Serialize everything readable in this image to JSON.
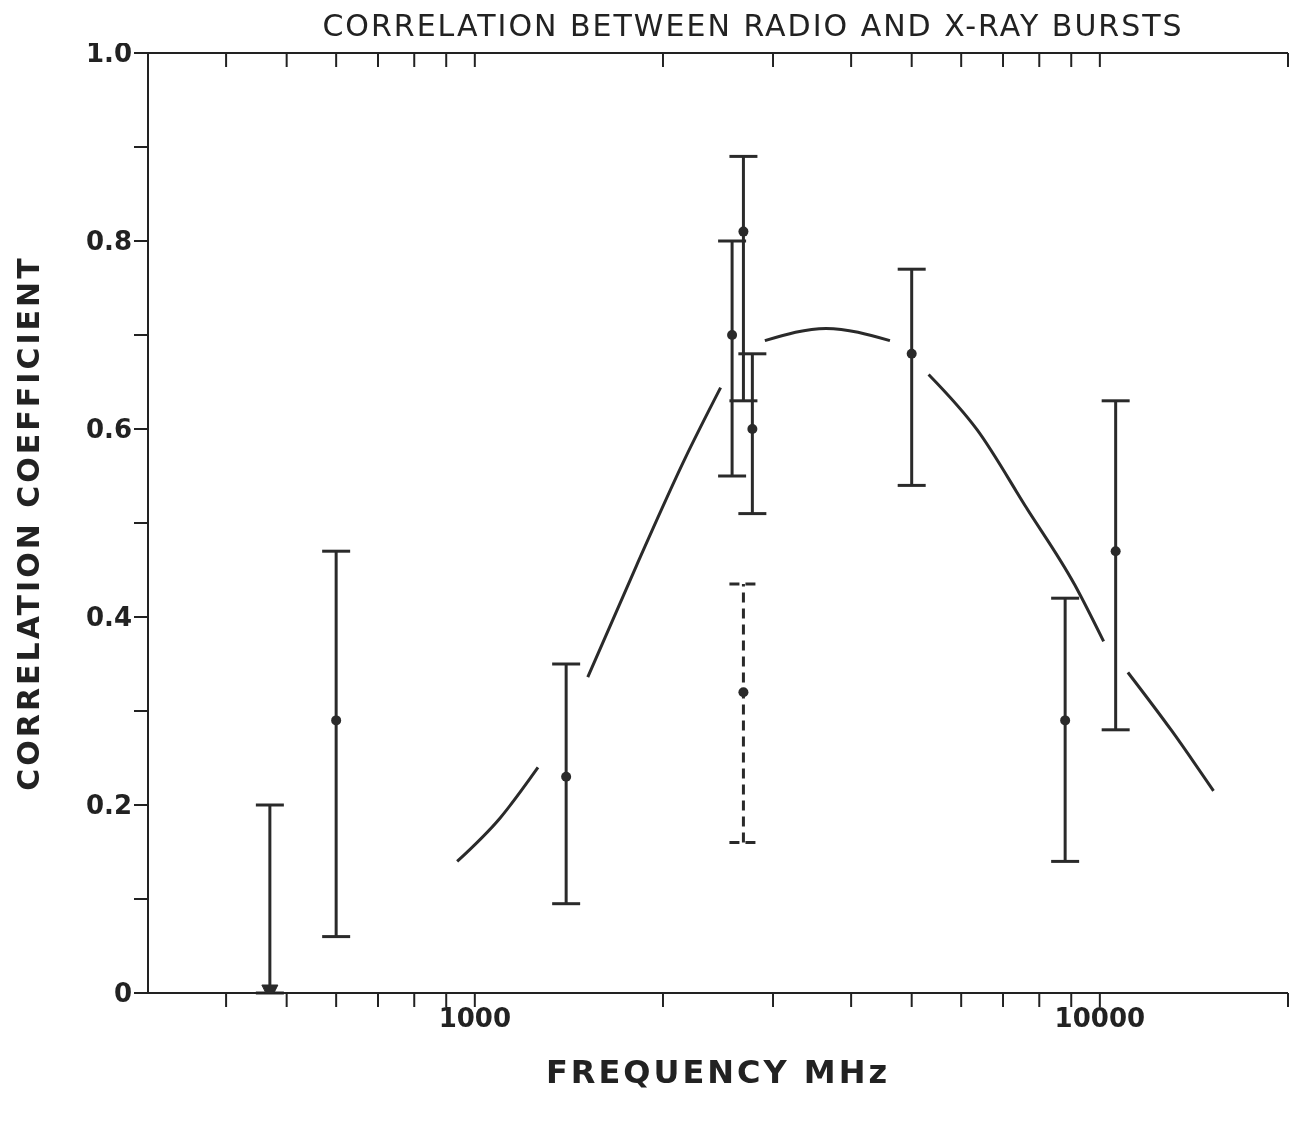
{
  "chart_data": {
    "type": "scatter",
    "title": "CORRELATION BETWEEN RADIO AND X-RAY BURSTS",
    "xlabel": "FREQUENCY  MHz",
    "ylabel": "CORRELATION COEFFICIENT",
    "log": "x",
    "xlim": [
      300,
      20000
    ],
    "xticks": [
      {
        "value": 400,
        "label": null
      },
      {
        "value": 500,
        "label": null
      },
      {
        "value": 600,
        "label": null
      },
      {
        "value": 700,
        "label": null
      },
      {
        "value": 800,
        "label": null
      },
      {
        "value": 900,
        "label": null
      },
      1000,
      {
        "value": 2000,
        "label": null
      },
      {
        "value": 3000,
        "label": null
      },
      {
        "value": 4000,
        "label": null
      },
      {
        "value": 5000,
        "label": null
      },
      {
        "value": 6000,
        "label": null
      },
      {
        "value": 7000,
        "label": null
      },
      {
        "value": 8000,
        "label": null
      },
      {
        "value": 9000,
        "label": null
      },
      10000,
      {
        "value": 20000,
        "label": null
      }
    ],
    "ylim": [
      0,
      1
    ],
    "yticks": [
      0,
      {
        "value": 0.1,
        "label": null
      },
      0.2,
      {
        "value": 0.3,
        "label": null
      },
      0.4,
      {
        "value": 0.5,
        "label": null
      },
      0.6,
      {
        "value": 0.7,
        "label": null
      },
      0.8,
      {
        "value": 0.9,
        "label": null
      },
      {
        "value": 1,
        "label": "1.0"
      }
    ],
    "series": [
      {
        "color": "#2a2a2a",
        "marker": "circle",
        "x": [
          600,
          1400,
          2580,
          2690,
          2780,
          5000,
          8800,
          10600
        ],
        "values": [
          0.29,
          0.23,
          0.7,
          0.81,
          0.6,
          0.68,
          0.29,
          0.47
        ],
        "errors": [
          [
            0.06,
            0.47
          ],
          [
            0.095,
            0.35
          ],
          [
            0.55,
            0.8
          ],
          [
            0.63,
            0.89
          ],
          [
            0.51,
            0.68
          ],
          [
            0.54,
            0.77
          ],
          [
            0.14,
            0.42
          ],
          [
            0.28,
            0.63
          ]
        ]
      },
      {
        "color": "#2a2a2a",
        "marker": "circle",
        "line_style": "dashed",
        "x": [
          2690
        ],
        "values": [
          0.32
        ],
        "errors": [
          [
            0.16,
            0.435
          ]
        ]
      },
      {
        "type": "scatter",
        "color": "#2a2a2a",
        "marker": "triangle",
        "x": [
          470
        ],
        "values": [
          0
        ],
        "errors": [
          [
            0,
            0.2
          ]
        ]
      },
      {
        "type": "line",
        "color": "#2a2a2a",
        "marker": "none",
        "line_style": "solid",
        "x": [
          937,
          1097,
          1262,
          1300,
          1516,
          1815,
          2167,
          2473,
          2700,
          2911,
          3648,
          4615,
          4900,
          5321,
          6365,
          7617,
          9120,
          10140,
          10600,
          11090,
          13030,
          15200
        ],
        "values": [
          0.14,
          0.186,
          0.24,
          null,
          0.336,
          0.455,
          0.568,
          0.644,
          null,
          0.694,
          0.707,
          0.694,
          null,
          0.658,
          0.599,
          0.517,
          0.434,
          0.374,
          null,
          0.341,
          0.279,
          0.215
        ]
      }
    ]
  }
}
